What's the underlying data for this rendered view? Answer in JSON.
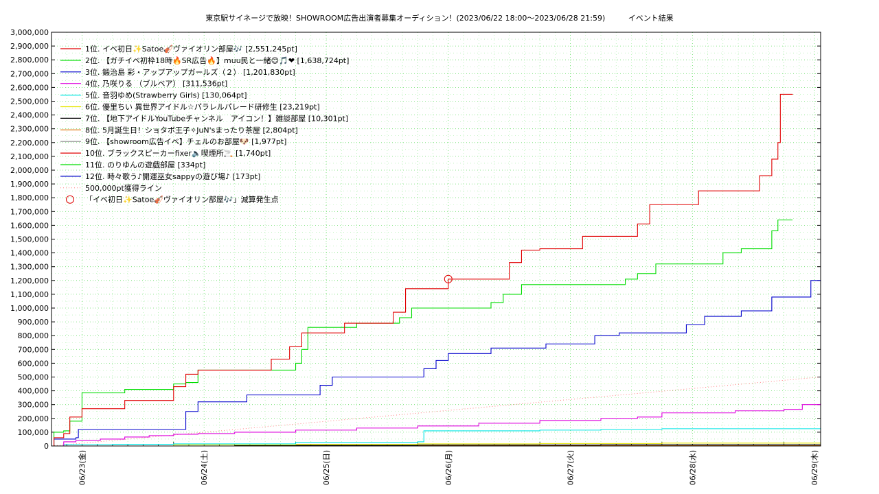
{
  "chart_data": {
    "type": "line",
    "title": "東京駅サイネージで放映！SHOWROOM広告出演者募集オーディション！(2023/06/22 18:00〜2023/06/28 21:59)",
    "subtitle": "イベント結果",
    "y_ticks": [
      "0",
      "100,000",
      "200,000",
      "300,000",
      "400,000",
      "500,000",
      "600,000",
      "700,000",
      "800,000",
      "900,000",
      "1,000,000",
      "1,100,000",
      "1,200,000",
      "1,300,000",
      "1,400,000",
      "1,500,000",
      "1,600,000",
      "1,700,000",
      "1,800,000",
      "1,900,000",
      "2,000,000",
      "2,100,000",
      "2,200,000",
      "2,300,000",
      "2,400,000",
      "2,500,000",
      "2,600,000",
      "2,700,000",
      "2,800,000",
      "2,900,000",
      "3,000,000"
    ],
    "x_ticks": [
      "06/23(金)",
      "06/24(土)",
      "06/25(日)",
      "06/26(月)",
      "06/27(火)",
      "06/28(水)",
      "06/29(木)"
    ],
    "ylim": [
      0,
      3000000
    ],
    "grid": true,
    "legend_position": "top-left",
    "series": [
      {
        "name": "1位. イベ初日✨Satoe🎻ヴァイオリン部屋🎶 [2,551,245pt]",
        "color": "#e00000",
        "points": [
          [
            0,
            0
          ],
          [
            0.02,
            60000
          ],
          [
            0.1,
            90000
          ],
          [
            0.15,
            210000
          ],
          [
            0.25,
            270000
          ],
          [
            0.6,
            330000
          ],
          [
            1.0,
            430000
          ],
          [
            1.1,
            520000
          ],
          [
            1.2,
            550000
          ],
          [
            1.5,
            550000
          ],
          [
            1.6,
            550000
          ],
          [
            1.75,
            550000
          ],
          [
            1.8,
            630000
          ],
          [
            1.95,
            720000
          ],
          [
            2.05,
            820000
          ],
          [
            2.1,
            820000
          ],
          [
            2.35,
            820000
          ],
          [
            2.4,
            890000
          ],
          [
            2.7,
            890000
          ],
          [
            2.8,
            970000
          ],
          [
            2.9,
            1140000
          ],
          [
            3.2,
            1140000
          ],
          [
            3.25,
            1210000
          ],
          [
            3.65,
            1210000
          ],
          [
            3.75,
            1330000
          ],
          [
            3.85,
            1420000
          ],
          [
            4.0,
            1430000
          ],
          [
            4.3,
            1430000
          ],
          [
            4.35,
            1520000
          ],
          [
            4.75,
            1520000
          ],
          [
            4.8,
            1610000
          ],
          [
            4.9,
            1750000
          ],
          [
            5.2,
            1750000
          ],
          [
            5.3,
            1850000
          ],
          [
            5.75,
            1850000
          ],
          [
            5.8,
            1960000
          ],
          [
            5.9,
            2080000
          ],
          [
            5.95,
            2200000
          ],
          [
            5.97,
            2550000
          ],
          [
            6.07,
            2551245
          ]
        ]
      },
      {
        "name": "2位. 【ガチイベ初枠18時🔥SR広告🔥】muu民と一緒😊🎵❤ [1,638,724pt]",
        "color": "#00dd00",
        "points": [
          [
            0,
            0
          ],
          [
            0.02,
            100000
          ],
          [
            0.1,
            110000
          ],
          [
            0.15,
            180000
          ],
          [
            0.25,
            385000
          ],
          [
            0.55,
            385000
          ],
          [
            0.6,
            410000
          ],
          [
            0.9,
            410000
          ],
          [
            1.0,
            450000
          ],
          [
            1.1,
            460000
          ],
          [
            1.2,
            550000
          ],
          [
            1.9,
            550000
          ],
          [
            2.0,
            600000
          ],
          [
            2.05,
            700000
          ],
          [
            2.1,
            860000
          ],
          [
            2.4,
            860000
          ],
          [
            2.5,
            890000
          ],
          [
            2.75,
            890000
          ],
          [
            2.85,
            930000
          ],
          [
            2.95,
            1000000
          ],
          [
            3.5,
            1000000
          ],
          [
            3.6,
            1040000
          ],
          [
            3.7,
            1100000
          ],
          [
            3.85,
            1170000
          ],
          [
            4.6,
            1170000
          ],
          [
            4.7,
            1210000
          ],
          [
            4.8,
            1250000
          ],
          [
            4.95,
            1320000
          ],
          [
            5.45,
            1320000
          ],
          [
            5.5,
            1400000
          ],
          [
            5.65,
            1430000
          ],
          [
            5.85,
            1430000
          ],
          [
            5.9,
            1560000
          ],
          [
            5.95,
            1638724
          ],
          [
            6.07,
            1638724
          ]
        ]
      },
      {
        "name": "3位. 鍛治島 彩・アップアップガールズ（２） [1,201,830pt]",
        "color": "#0000cc",
        "points": [
          [
            0,
            0
          ],
          [
            0.02,
            50000
          ],
          [
            0.2,
            60000
          ],
          [
            0.22,
            120000
          ],
          [
            1.0,
            120000
          ],
          [
            1.1,
            250000
          ],
          [
            1.2,
            320000
          ],
          [
            1.55,
            320000
          ],
          [
            1.6,
            370000
          ],
          [
            2.1,
            370000
          ],
          [
            2.2,
            440000
          ],
          [
            2.3,
            500000
          ],
          [
            3.0,
            500000
          ],
          [
            3.05,
            560000
          ],
          [
            3.15,
            620000
          ],
          [
            3.25,
            670000
          ],
          [
            3.55,
            670000
          ],
          [
            3.6,
            710000
          ],
          [
            4.0,
            710000
          ],
          [
            4.05,
            740000
          ],
          [
            4.35,
            740000
          ],
          [
            4.45,
            800000
          ],
          [
            4.6,
            800000
          ],
          [
            4.65,
            820000
          ],
          [
            5.15,
            820000
          ],
          [
            5.2,
            880000
          ],
          [
            5.35,
            940000
          ],
          [
            5.6,
            940000
          ],
          [
            5.65,
            980000
          ],
          [
            5.8,
            980000
          ],
          [
            5.9,
            1080000
          ],
          [
            6.15,
            1080000
          ],
          [
            6.22,
            1200000
          ],
          [
            6.3,
            1201830
          ]
        ]
      },
      {
        "name": "4位. 乃咲りる （ブルベア） [311,536pt]",
        "color": "#dd00dd",
        "points": [
          [
            0,
            0
          ],
          [
            0.1,
            30000
          ],
          [
            0.2,
            40000
          ],
          [
            0.4,
            50000
          ],
          [
            0.6,
            65000
          ],
          [
            0.8,
            75000
          ],
          [
            1.0,
            85000
          ],
          [
            1.2,
            90000
          ],
          [
            1.5,
            100000
          ],
          [
            2.0,
            115000
          ],
          [
            2.5,
            130000
          ],
          [
            3.0,
            145000
          ],
          [
            3.5,
            165000
          ],
          [
            4.0,
            185000
          ],
          [
            4.5,
            200000
          ],
          [
            4.8,
            210000
          ],
          [
            5.0,
            240000
          ],
          [
            5.5,
            240000
          ],
          [
            5.6,
            255000
          ],
          [
            6.0,
            265000
          ],
          [
            6.15,
            300000
          ],
          [
            6.3,
            311536
          ]
        ]
      },
      {
        "name": "5位. 音羽ゆめ(Strawberry Girls) [130,064pt]",
        "color": "#00e5e5",
        "points": [
          [
            0,
            0
          ],
          [
            0.1,
            10000
          ],
          [
            0.5,
            12000
          ],
          [
            1.0,
            15000
          ],
          [
            2.0,
            25000
          ],
          [
            3.0,
            30000
          ],
          [
            3.05,
            110000
          ],
          [
            3.5,
            110000
          ],
          [
            4.0,
            115000
          ],
          [
            4.5,
            120000
          ],
          [
            5.0,
            125000
          ],
          [
            6.3,
            130064
          ]
        ]
      },
      {
        "name": "6位. 優里ちい 異世界アイドル☆パラレルパレード研修生 [23,219pt]",
        "color": "#e6e600",
        "points": [
          [
            0,
            0
          ],
          [
            1.0,
            8000
          ],
          [
            2.0,
            12000
          ],
          [
            3.0,
            15000
          ],
          [
            4.0,
            18000
          ],
          [
            5.0,
            21000
          ],
          [
            6.3,
            23219
          ]
        ]
      },
      {
        "name": "7位. 【地下アイドルYouTubeチャンネル　アイコン！】雑談部屋 [10,301pt]",
        "color": "#000000",
        "points": [
          [
            0,
            0
          ],
          [
            1.5,
            5000
          ],
          [
            3.0,
            7000
          ],
          [
            4.5,
            9000
          ],
          [
            6.3,
            10301
          ]
        ]
      },
      {
        "name": "8位. 5月誕生日！ショタボ王子✧JuN'sまったり茶屋 [2,804pt]",
        "color": "#e07000",
        "points": [
          [
            0,
            0
          ],
          [
            2.0,
            1500
          ],
          [
            4.0,
            2200
          ],
          [
            6.3,
            2804
          ]
        ]
      },
      {
        "name": "9位. 【showroom広告イベ】チェルのお部屋🐶 [1,977pt]",
        "color": "#888888",
        "points": [
          [
            0,
            0
          ],
          [
            2.0,
            1000
          ],
          [
            4.0,
            1500
          ],
          [
            6.3,
            1977
          ]
        ]
      },
      {
        "name": "10位. ブラックスピーカーfixer🔈喫煙所🚬 [1,740pt]",
        "color": "#e00000",
        "points": [
          [
            0,
            0
          ],
          [
            3.0,
            1200
          ],
          [
            6.3,
            1740
          ]
        ]
      },
      {
        "name": "11位. のりゆんの遊戯部屋 [334pt]",
        "color": "#00dd00",
        "points": [
          [
            0,
            0
          ],
          [
            6.3,
            334
          ]
        ]
      },
      {
        "name": "12位. 時々歌う♪開運巫女sappyの遊び場♪ [173pt]",
        "color": "#0000cc",
        "points": [
          [
            0,
            0
          ],
          [
            6.3,
            173
          ]
        ]
      }
    ],
    "reference_line": {
      "name": "500,000pt獲得ライン",
      "color": "#ff8080",
      "points": [
        [
          0,
          0
        ],
        [
          6.3,
          500000
        ]
      ]
    },
    "marker": {
      "name": "「イベ初日✨Satoe🎻ヴァイオリン部屋🎶」減算発生点",
      "color": "#e00000",
      "point": [
        3.25,
        1210000
      ]
    }
  }
}
